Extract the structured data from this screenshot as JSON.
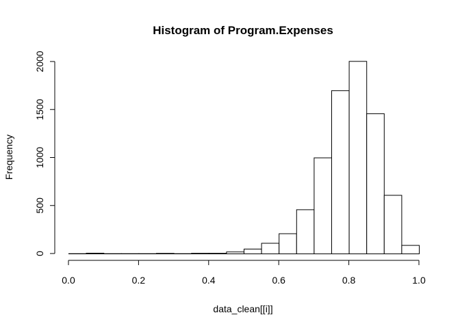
{
  "chart_data": {
    "type": "bar",
    "title": "Histogram of Program.Expenses",
    "xlabel": "data_clean[[i]]",
    "ylabel": "Frequency",
    "bin_width": 0.05,
    "x_ticks": [
      "0.0",
      "0.2",
      "0.4",
      "0.6",
      "0.8",
      "1.0"
    ],
    "y_ticks": [
      "0",
      "500",
      "1000",
      "1500",
      "2000"
    ],
    "xlim": [
      0,
      1
    ],
    "ylim": [
      0,
      2000
    ],
    "bins": [
      {
        "x0": 0.0,
        "x1": 0.05,
        "count": 2
      },
      {
        "x0": 0.05,
        "x1": 0.1,
        "count": 7
      },
      {
        "x0": 0.1,
        "x1": 0.15,
        "count": 2
      },
      {
        "x0": 0.15,
        "x1": 0.2,
        "count": 2
      },
      {
        "x0": 0.2,
        "x1": 0.25,
        "count": 2
      },
      {
        "x0": 0.25,
        "x1": 0.3,
        "count": 5
      },
      {
        "x0": 0.3,
        "x1": 0.35,
        "count": 2
      },
      {
        "x0": 0.35,
        "x1": 0.4,
        "count": 6
      },
      {
        "x0": 0.4,
        "x1": 0.45,
        "count": 6
      },
      {
        "x0": 0.45,
        "x1": 0.5,
        "count": 20
      },
      {
        "x0": 0.5,
        "x1": 0.55,
        "count": 50
      },
      {
        "x0": 0.55,
        "x1": 0.6,
        "count": 110
      },
      {
        "x0": 0.6,
        "x1": 0.65,
        "count": 210
      },
      {
        "x0": 0.65,
        "x1": 0.7,
        "count": 460
      },
      {
        "x0": 0.7,
        "x1": 0.75,
        "count": 1000
      },
      {
        "x0": 0.75,
        "x1": 0.8,
        "count": 1700
      },
      {
        "x0": 0.8,
        "x1": 0.85,
        "count": 2005
      },
      {
        "x0": 0.85,
        "x1": 0.9,
        "count": 1460
      },
      {
        "x0": 0.9,
        "x1": 0.95,
        "count": 610
      },
      {
        "x0": 0.95,
        "x1": 1.0,
        "count": 88
      }
    ]
  }
}
